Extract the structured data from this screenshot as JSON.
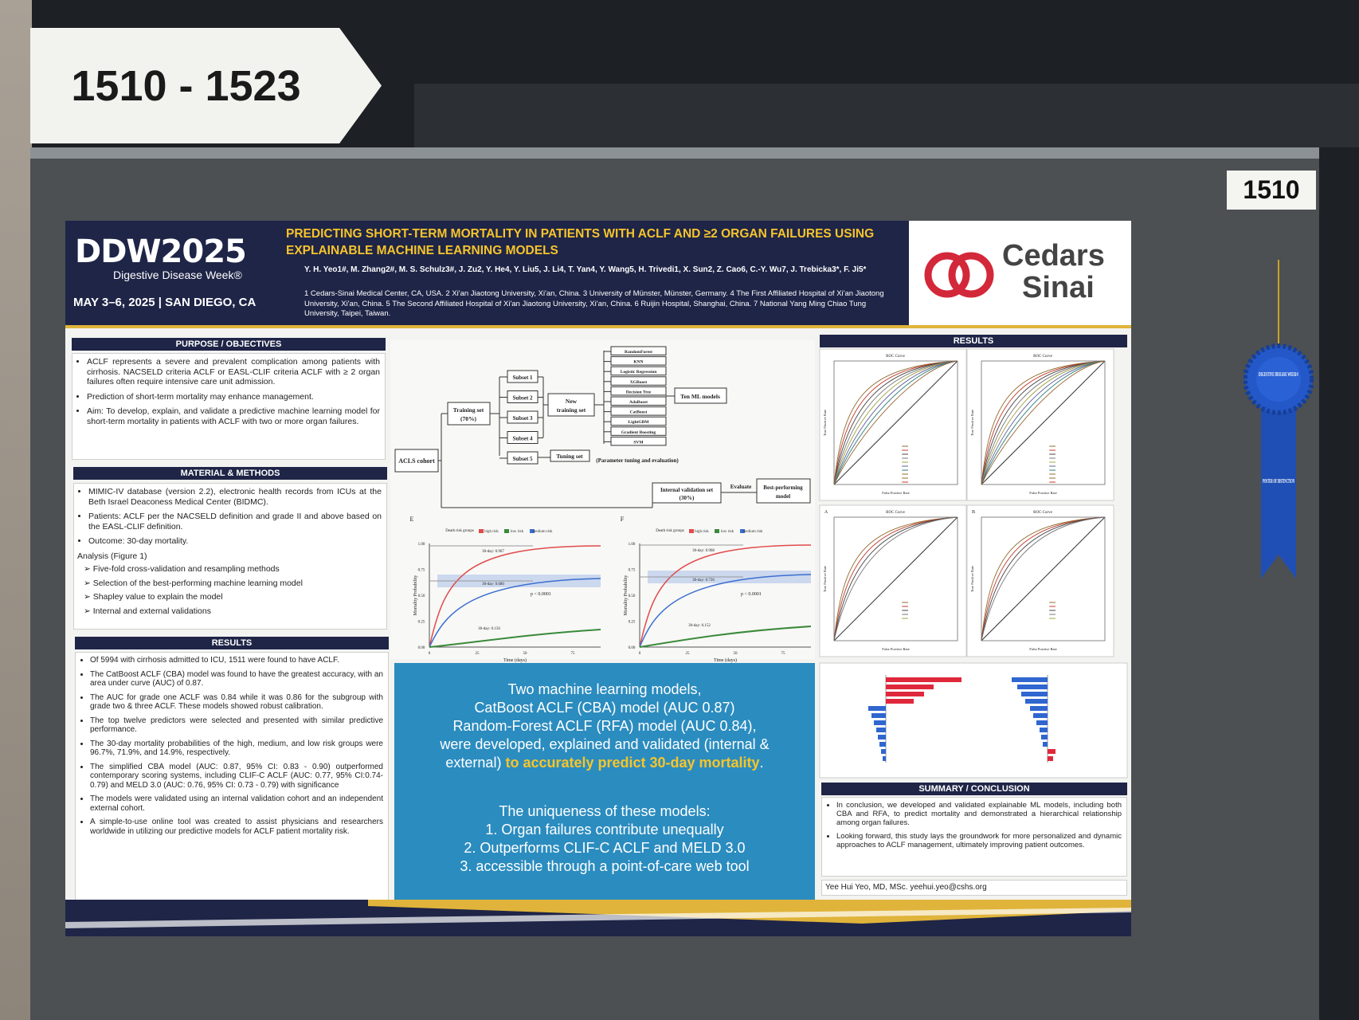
{
  "sign": "1510 - 1523",
  "board_label": "1510",
  "ribbon": {
    "top": "DIGESTIVE DISEASE WEEK®",
    "bottom": "POSTER OF DISTINCTION"
  },
  "header": {
    "logo": "DDW2025",
    "tagline": "Digestive Disease Week®",
    "date": "MAY 3–6, 2025 | SAN DIEGO, CA",
    "title": "PREDICTING SHORT-TERM MORTALITY IN PATIENTS WITH ACLF AND ≥2 ORGAN FAILURES USING EXPLAINABLE MACHINE LEARNING MODELS",
    "authors": "Y. H. Yeo1#, M. Zhang2#, M. S. Schulz3#, J. Zu2, Y. He4, Y. Liu5, J. Li4, T. Yan4, Y. Wang5, H. Trivedi1, X. Sun2, Z. Cao6, C.-Y. Wu7, J. Trebicka3*, F. Ji5*",
    "affiliations": "1 Cedars-Sinai Medical Center, CA, USA. 2 Xi'an Jiaotong University, Xi'an, China. 3 University of Münster, Münster, Germany. 4 The First Affiliated Hospital of Xi'an Jiaotong University, Xi'an, China. 5 The Second Affiliated Hospital of Xi'an Jiaotong University, Xi'an, China. 6 Ruijin Hospital, Shanghai, China. 7 National Yang Ming Chiao Tung University, Taipei, Taiwan.",
    "sponsor": {
      "line1": "Cedars",
      "line2": "Sinai"
    }
  },
  "purpose": {
    "heading": "PURPOSE / OBJECTIVES",
    "items": [
      "ACLF represents a severe and prevalent complication among patients with cirrhosis. NACSELD criteria ACLF or EASL-CLIF criteria ACLF with ≥ 2 organ failures often require intensive care unit admission.",
      "Prediction of short-term mortality may enhance management.",
      "Aim: To develop, explain, and validate a predictive machine learning model for short-term mortality in patients with ACLF with two or more organ failures."
    ]
  },
  "methods": {
    "heading": "MATERIAL & METHODS",
    "items": [
      "MIMIC-IV database (version 2.2), electronic health records from ICUs at the Beth Israel Deaconess Medical Center (BIDMC).",
      "Patients: ACLF per the NACSELD definition and grade II and above based on the EASL-CLIF definition.",
      "Outcome: 30-day mortality."
    ],
    "analysis": "Analysis (Figure 1)",
    "sub": [
      "Five-fold cross-validation and resampling methods",
      "Selection of the best-performing machine learning model",
      "Shapley value to explain the model",
      "Internal and external validations"
    ]
  },
  "results": {
    "heading": "RESULTS",
    "items": [
      "Of 5994 with cirrhosis admitted to ICU, 1511 were found to have ACLF.",
      "The CatBoost ACLF (CBA) model was found to have the greatest accuracy, with an area under curve (AUC) of 0.87.",
      "The AUC for grade one ACLF was 0.84 while it was 0.86 for the subgroup with grade two & three ACLF. These models showed robust calibration.",
      "The top twelve predictors were selected and presented with similar predictive performance.",
      "The 30-day mortality probabilities of the high, medium, and low risk groups were 96.7%, 71.9%, and 14.9%, respectively.",
      "The simplified CBA model (AUC: 0.87, 95% CI: 0.83 - 0.90) outperformed contemporary scoring systems,   including CLIF-C ACLF (AUC: 0.77, 95% CI:0.74-0.79) and MELD 3.0 (AUC: 0.76, 95% CI: 0.73 - 0.79) with significance",
      "The models were validated using an internal validation cohort and an independent external cohort.",
      "A simple-to-use online tool was created to assist physicians and researchers worldwide in utilizing our predictive models for ACLF patient mortality risk."
    ]
  },
  "flowchart": {
    "cohort": "ACLS cohort",
    "training": [
      "Training set",
      "(70%)"
    ],
    "subsets": [
      "Subset 1",
      "Subset 2",
      "Subset 3",
      "Subset 4",
      "Subset 5"
    ],
    "new_training": [
      "New",
      "training set"
    ],
    "tuning": "Tuning set",
    "models": [
      "RandomForest",
      "KNN",
      "Logistic Regression",
      "XGBoost",
      "Decision Tree",
      "AdaBoost",
      "CatBoost",
      "LightGBM",
      "Gradient Boosting",
      "SVM"
    ],
    "ten_models": "Ten ML models",
    "param": "(Parameter tuning and evaluation)",
    "internal": [
      "Internal validation set",
      "(30%)"
    ],
    "evaluate": "Evaluate",
    "best": [
      "Best-performing",
      "model"
    ]
  },
  "km_plots": [
    {
      "panel": "E",
      "legend": [
        "Death risk groups",
        "high risk",
        "low risk",
        "medium risk"
      ],
      "labels": [
        "30-day: 0.967",
        "30-day: 0.680",
        "30-day: 0.150"
      ],
      "p": "p < 0.0001",
      "xlabel": "Time (days)",
      "ylabel": "Mortality Probability",
      "xticks": [
        "0",
        "25",
        "50",
        "75"
      ],
      "yticks": [
        "0.00",
        "0.25",
        "0.50",
        "0.75",
        "1.00"
      ]
    },
    {
      "panel": "F",
      "legend": [
        "Death risk groups",
        "high risk",
        "low risk",
        "medium risk"
      ],
      "labels": [
        "30-day: 0.968",
        "30-day: 0.726",
        "30-day: 0.152"
      ],
      "p": "p < 0.0001",
      "xlabel": "Time (days)",
      "ylabel": "Mortality Probability",
      "xticks": [
        "0",
        "25",
        "50",
        "75"
      ],
      "yticks": [
        "0.00",
        "0.25",
        "0.50",
        "0.75",
        "1.00"
      ]
    }
  ],
  "key_findings": {
    "lines": [
      "Two machine learning models,",
      "CatBoost ACLF (CBA) model (AUC 0.87)",
      "Random-Forest ACLF (RFA) model (AUC 0.84),",
      "were developed, explained and validated (internal &"
    ],
    "last_plain": "external) ",
    "highlight": "to accurately predict 30-day mortality",
    "end": ".",
    "uniqueness": "The uniqueness of these models:",
    "points": [
      "1. Organ failures contribute unequally",
      "2. Outperforms CLIF-C ACLF and MELD 3.0",
      "3. accessible through a point-of-care web tool"
    ]
  },
  "right_results": {
    "heading": "RESULTS",
    "roc_title": "ROC Curve",
    "roc_panels": [
      "A",
      "B"
    ],
    "xlabel": "False Positive Rate",
    "ylabel": "True Positive Rate"
  },
  "summary": {
    "heading": "SUMMARY / CONCLUSION",
    "items": [
      "In conclusion, we developed and validated explainable ML models, including both CBA and RFA, to predict mortality and demonstrated a hierarchical relationship among organ failures.",
      "Looking forward, this study lays the groundwork for more personalized and dynamic approaches to ACLF management, ultimately improving patient outcomes."
    ],
    "contact": "Yee Hui Yeo, MD, MSc. yeehui.yeo@cshs.org"
  }
}
